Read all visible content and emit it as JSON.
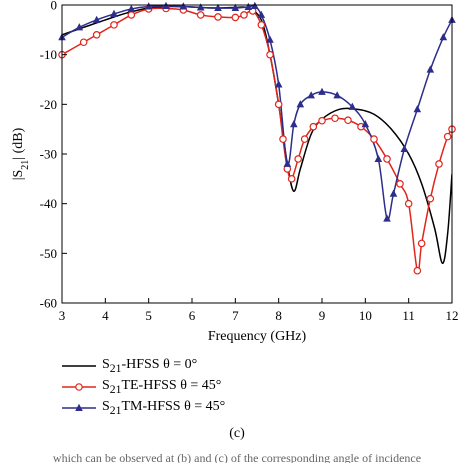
{
  "chart_data": {
    "type": "line",
    "xlabel": "Frequency (GHz)",
    "ylabel": "|S21| (dB)",
    "xlim": [
      3,
      12
    ],
    "ylim": [
      -60,
      0
    ],
    "xticks": [
      3,
      4,
      5,
      6,
      7,
      8,
      9,
      10,
      11,
      12
    ],
    "yticks": [
      0,
      -10,
      -20,
      -30,
      -40,
      -50,
      -60
    ],
    "grid": false,
    "legend_position": "below",
    "series": [
      {
        "name": "S21-HFSS θ = 0°",
        "color": "#000000",
        "marker": "none",
        "points": [
          [
            3,
            -6
          ],
          [
            3.5,
            -4.5
          ],
          [
            4,
            -3
          ],
          [
            4.5,
            -1.6
          ],
          [
            5,
            -0.6
          ],
          [
            5.5,
            -0.3
          ],
          [
            6,
            -0.4
          ],
          [
            6.5,
            -0.6
          ],
          [
            7,
            -0.5
          ],
          [
            7.3,
            -0.6
          ],
          [
            7.6,
            -3
          ],
          [
            7.8,
            -10
          ],
          [
            8,
            -20
          ],
          [
            8.2,
            -32
          ],
          [
            8.35,
            -37.5
          ],
          [
            8.5,
            -33
          ],
          [
            8.75,
            -26
          ],
          [
            9,
            -23
          ],
          [
            9.4,
            -21
          ],
          [
            9.8,
            -21
          ],
          [
            10.2,
            -22
          ],
          [
            10.6,
            -25
          ],
          [
            11,
            -30
          ],
          [
            11.3,
            -36
          ],
          [
            11.6,
            -45
          ],
          [
            11.78,
            -52
          ],
          [
            11.9,
            -46
          ],
          [
            12,
            -34
          ]
        ]
      },
      {
        "name": "S21TE-HFSS θ = 45°",
        "color": "#e0261b",
        "marker": "circle",
        "points": [
          [
            3,
            -10
          ],
          [
            3.5,
            -7.5
          ],
          [
            3.8,
            -6
          ],
          [
            4.2,
            -4
          ],
          [
            4.6,
            -2
          ],
          [
            5,
            -0.8
          ],
          [
            5.4,
            -0.7
          ],
          [
            5.8,
            -1
          ],
          [
            6.2,
            -2
          ],
          [
            6.6,
            -2.4
          ],
          [
            7,
            -2.5
          ],
          [
            7.2,
            -2
          ],
          [
            7.4,
            -1.2
          ],
          [
            7.6,
            -4
          ],
          [
            7.8,
            -10
          ],
          [
            8,
            -20
          ],
          [
            8.1,
            -27
          ],
          [
            8.2,
            -33
          ],
          [
            8.3,
            -35
          ],
          [
            8.45,
            -31
          ],
          [
            8.6,
            -27
          ],
          [
            8.8,
            -24.5
          ],
          [
            9,
            -23.3
          ],
          [
            9.3,
            -22.8
          ],
          [
            9.6,
            -23.2
          ],
          [
            9.9,
            -24.5
          ],
          [
            10.2,
            -27
          ],
          [
            10.5,
            -31
          ],
          [
            10.8,
            -36
          ],
          [
            11,
            -40
          ],
          [
            11.2,
            -53.5
          ],
          [
            11.3,
            -48
          ],
          [
            11.5,
            -39
          ],
          [
            11.7,
            -32
          ],
          [
            11.9,
            -26.5
          ],
          [
            12,
            -25
          ]
        ]
      },
      {
        "name": "S21TM-HFSS θ = 45°",
        "color": "#2d2d8c",
        "marker": "triangle",
        "points": [
          [
            3,
            -6.5
          ],
          [
            3.4,
            -4.5
          ],
          [
            3.8,
            -3
          ],
          [
            4.2,
            -1.8
          ],
          [
            4.6,
            -0.8
          ],
          [
            5,
            -0.3
          ],
          [
            5.4,
            -0.2
          ],
          [
            5.8,
            -0.3
          ],
          [
            6.2,
            -0.5
          ],
          [
            6.6,
            -0.6
          ],
          [
            7,
            -0.6
          ],
          [
            7.3,
            -0.4
          ],
          [
            7.45,
            -0.2
          ],
          [
            7.6,
            -2
          ],
          [
            7.8,
            -7
          ],
          [
            8,
            -16
          ],
          [
            8.2,
            -32
          ],
          [
            8.35,
            -24
          ],
          [
            8.5,
            -20
          ],
          [
            8.75,
            -18.2
          ],
          [
            9,
            -17.5
          ],
          [
            9.35,
            -18.2
          ],
          [
            9.7,
            -20.5
          ],
          [
            10,
            -24
          ],
          [
            10.3,
            -31
          ],
          [
            10.5,
            -43
          ],
          [
            10.65,
            -38
          ],
          [
            10.9,
            -29
          ],
          [
            11.2,
            -21
          ],
          [
            11.5,
            -13
          ],
          [
            11.8,
            -6.5
          ],
          [
            12,
            -3
          ]
        ]
      }
    ]
  },
  "legend": {
    "entries": [
      {
        "sym": "S",
        "sub": "21",
        "text": "-HFSS θ = 0°"
      },
      {
        "sym": "S",
        "sub": "21",
        "text": "TE-HFSS θ = 45°"
      },
      {
        "sym": "S",
        "sub": "21",
        "text": "TM-HFSS θ = 45°"
      }
    ]
  },
  "caption": "(c)",
  "footer": "which can be observed at (b) and (c) of the corresponding angle of incidence"
}
